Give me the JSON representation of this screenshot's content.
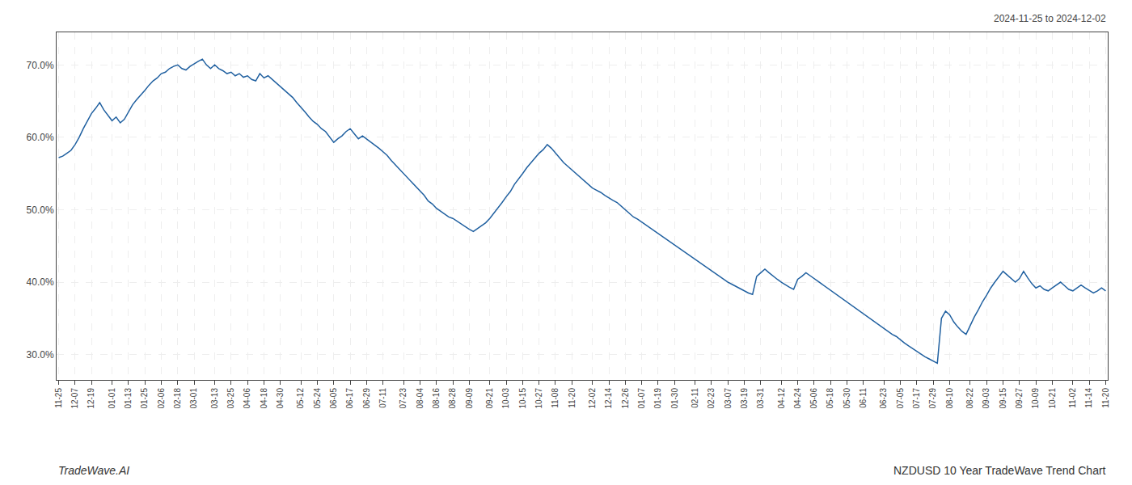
{
  "chart_data": {
    "type": "line",
    "annotations": [
      "2024-11-25 to 2024-12-02",
      "TradeWave.AI",
      "NZDUSD 10 Year TradeWave Trend Chart"
    ],
    "color": "#2060a0",
    "grid": true,
    "ylim": [
      0.265,
      0.745
    ],
    "yticks": [
      {
        "value": 0.3,
        "label": "30.0%"
      },
      {
        "value": 0.4,
        "label": "40.0%"
      },
      {
        "value": 0.5,
        "label": "50.0%"
      },
      {
        "value": 0.6,
        "label": "60.0%"
      },
      {
        "value": 0.7,
        "label": "70.0%"
      }
    ],
    "categories": [
      "11-25",
      null,
      null,
      null,
      "12-07",
      null,
      null,
      null,
      "12-19",
      null,
      null,
      null,
      null,
      "01-01",
      null,
      null,
      null,
      "01-13",
      null,
      null,
      null,
      "01-25",
      null,
      null,
      null,
      "02-06",
      null,
      null,
      null,
      "02-18",
      null,
      null,
      null,
      "03-01",
      null,
      null,
      null,
      null,
      "03-13",
      null,
      null,
      null,
      "03-25",
      null,
      null,
      null,
      "04-06",
      null,
      null,
      null,
      "04-18",
      null,
      null,
      null,
      "04-30",
      null,
      null,
      null,
      null,
      "05-12",
      null,
      null,
      null,
      "05-24",
      null,
      null,
      null,
      "06-05",
      null,
      null,
      null,
      "06-17",
      null,
      null,
      null,
      "06-29",
      null,
      null,
      null,
      "07-11",
      null,
      null,
      null,
      null,
      "07-23",
      null,
      null,
      null,
      "08-04",
      null,
      null,
      null,
      "08-16",
      null,
      null,
      null,
      "08-28",
      null,
      null,
      null,
      "09-09",
      null,
      null,
      null,
      null,
      "09-21",
      null,
      null,
      null,
      "10-03",
      null,
      null,
      null,
      "10-15",
      null,
      null,
      null,
      "10-27",
      null,
      null,
      null,
      "11-08",
      null,
      null,
      null,
      "11-20",
      null,
      null,
      null,
      null,
      "12-02",
      null,
      null,
      null,
      "12-14",
      null,
      null,
      null,
      "12-26",
      null,
      null,
      null,
      "01-07",
      null,
      null,
      null,
      "01-19",
      null,
      null,
      null,
      "01-30",
      null,
      null,
      null,
      null,
      "02-11",
      null,
      null,
      null,
      "02-23",
      null,
      null,
      null,
      "03-07",
      null,
      null,
      null,
      "03-19",
      null,
      null,
      null,
      "03-31",
      null,
      null,
      null,
      null,
      "04-12",
      null,
      null,
      null,
      "04-24",
      null,
      null,
      null,
      "05-06",
      null,
      null,
      null,
      "05-18",
      null,
      null,
      null,
      "05-30",
      null,
      null,
      null,
      "06-11",
      null,
      null,
      null,
      null,
      "06-23",
      null,
      null,
      null,
      "07-05",
      null,
      null,
      null,
      "07-17",
      null,
      null,
      null,
      "07-29",
      null,
      null,
      null,
      "08-10",
      null,
      null,
      null,
      null,
      "08-22",
      null,
      null,
      null,
      "09-03",
      null,
      null,
      null,
      "09-15",
      null,
      null,
      null,
      "09-27",
      null,
      null,
      null,
      "10-09",
      null,
      null,
      null,
      "10-21",
      null,
      null,
      null,
      null,
      "11-02",
      null,
      null,
      null,
      "11-14",
      null,
      null,
      null,
      "11-20"
    ],
    "values": [
      0.572,
      0.574,
      0.578,
      0.582,
      0.59,
      0.6,
      0.612,
      0.622,
      0.633,
      0.64,
      0.648,
      0.638,
      0.63,
      0.623,
      0.628,
      0.62,
      0.625,
      0.635,
      0.645,
      0.652,
      0.658,
      0.665,
      0.672,
      0.678,
      0.682,
      0.688,
      0.69,
      0.695,
      0.698,
      0.7,
      0.695,
      0.693,
      0.698,
      0.702,
      0.705,
      0.708,
      0.7,
      0.695,
      0.7,
      0.695,
      0.692,
      0.688,
      0.69,
      0.685,
      0.688,
      0.683,
      0.685,
      0.68,
      0.678,
      0.688,
      0.682,
      0.685,
      0.68,
      0.675,
      0.67,
      0.665,
      0.66,
      0.655,
      0.648,
      0.642,
      0.635,
      0.628,
      0.622,
      0.618,
      0.612,
      0.608,
      0.6,
      0.593,
      0.598,
      0.602,
      0.608,
      0.612,
      0.605,
      0.598,
      0.602,
      0.598,
      0.594,
      0.59,
      0.585,
      0.58,
      0.575,
      0.568,
      0.562,
      0.556,
      0.55,
      0.544,
      0.538,
      0.532,
      0.525,
      0.52,
      0.512,
      0.508,
      0.502,
      0.498,
      0.494,
      0.49,
      0.488,
      0.484,
      0.48,
      0.476,
      0.473,
      0.47,
      0.474,
      0.478,
      0.482,
      0.488,
      0.495,
      0.502,
      0.51,
      0.518,
      0.525,
      0.535,
      0.542,
      0.55,
      0.558,
      0.565,
      0.572,
      0.578,
      0.583,
      0.59,
      0.585,
      0.578,
      0.572,
      0.565,
      0.56,
      0.555,
      0.549,
      0.544,
      0.54,
      0.535,
      0.53,
      0.527,
      0.524,
      0.52,
      0.516,
      0.513,
      0.51,
      0.505,
      0.5,
      0.495,
      0.49,
      0.487,
      0.483,
      0.48,
      0.476,
      0.472,
      0.468,
      0.464,
      0.46,
      0.456,
      0.452,
      0.448,
      0.444,
      0.44,
      0.436,
      0.432,
      0.428,
      0.424,
      0.42,
      0.416,
      0.412,
      0.408,
      0.404,
      0.4,
      0.397,
      0.394,
      0.391,
      0.388,
      0.385,
      0.383,
      0.408,
      0.413,
      0.418,
      0.413,
      0.408,
      0.404,
      0.4,
      0.396,
      0.393,
      0.39,
      0.404,
      0.408,
      0.413,
      0.409,
      0.405,
      0.4,
      0.396,
      0.392,
      0.388,
      0.384,
      0.38,
      0.376,
      0.372,
      0.368,
      0.364,
      0.36,
      0.356,
      0.352,
      0.348,
      0.344,
      0.34,
      0.336,
      0.332,
      0.328,
      0.325,
      0.32,
      0.316,
      0.312,
      0.308,
      0.304,
      0.3,
      0.297,
      0.294,
      0.291,
      0.288,
      0.35,
      0.36,
      0.355,
      0.345,
      0.338,
      0.332,
      0.328,
      0.34,
      0.352,
      0.362,
      0.373,
      0.382,
      0.392,
      0.4,
      0.408,
      0.415,
      0.41,
      0.405,
      0.4,
      0.405,
      0.415,
      0.406,
      0.398,
      0.392,
      0.395,
      0.39,
      0.388,
      0.392,
      0.396,
      0.4,
      0.395,
      0.39,
      0.388,
      0.392,
      0.396,
      0.392,
      0.388,
      0.385,
      0.388,
      0.392,
      0.388
    ]
  }
}
